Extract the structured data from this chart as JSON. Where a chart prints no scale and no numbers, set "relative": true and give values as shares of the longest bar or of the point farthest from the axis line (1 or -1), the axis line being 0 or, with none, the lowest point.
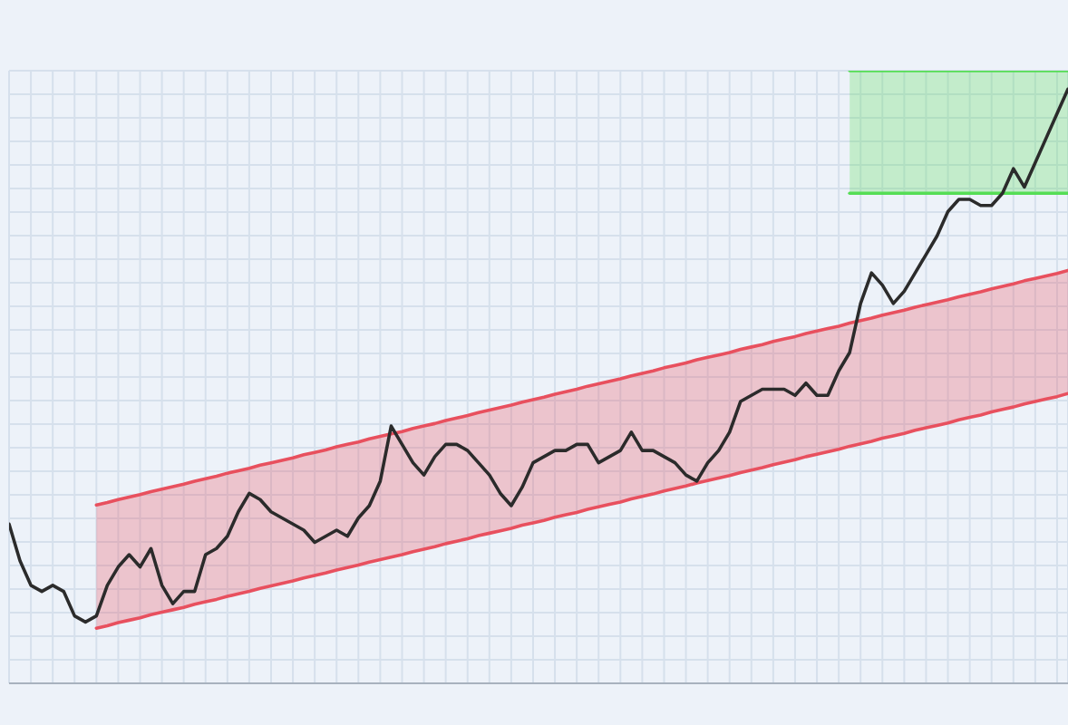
{
  "chart_data": {
    "type": "line",
    "relative": true,
    "grid": true,
    "categories": [
      null,
      null,
      null,
      null,
      null,
      null,
      null,
      null,
      null,
      null,
      null,
      null,
      null,
      null,
      null,
      null,
      null,
      null,
      null,
      null,
      null,
      null,
      null,
      null,
      null,
      null,
      null,
      null,
      null,
      null,
      null,
      null,
      null,
      null,
      null,
      null,
      null,
      null,
      null,
      null,
      null,
      null,
      null,
      null,
      null,
      null,
      null,
      null,
      null,
      null,
      null,
      null,
      null,
      null,
      null,
      null,
      null,
      null,
      null,
      null,
      null,
      null,
      null,
      null,
      null,
      null,
      null,
      null,
      null,
      null,
      null,
      null,
      null,
      null,
      null,
      null,
      null,
      null,
      null,
      null,
      null,
      null,
      null,
      null,
      null,
      null,
      null,
      null,
      null,
      null,
      null,
      null,
      null,
      null,
      null,
      null,
      null,
      null
    ],
    "series": [
      {
        "type": "line",
        "color": "#e8505e",
        "values": [
          null,
          null,
          null,
          null,
          null,
          null,
          null,
          null,
          0.291,
          0.295,
          0.3,
          0.304,
          0.308,
          0.313,
          0.317,
          0.321,
          0.325,
          0.33,
          0.334,
          0.338,
          0.343,
          0.347,
          0.351,
          0.356,
          0.36,
          0.364,
          0.368,
          0.373,
          0.377,
          0.381,
          0.386,
          0.39,
          0.394,
          0.399,
          0.403,
          0.407,
          0.411,
          0.416,
          0.42,
          0.424,
          0.429,
          0.433,
          0.437,
          0.442,
          0.446,
          0.45,
          0.454,
          0.459,
          0.463,
          0.467,
          0.472,
          0.476,
          0.48,
          0.485,
          0.489,
          0.493,
          0.497,
          0.502,
          0.506,
          0.51,
          0.515,
          0.519,
          0.523,
          0.528,
          0.532,
          0.536,
          0.54,
          0.545,
          0.549,
          0.553,
          0.558,
          0.562,
          0.566,
          0.571,
          0.575,
          0.579,
          0.583,
          0.588,
          0.592,
          0.596,
          0.601,
          0.605,
          0.609,
          0.614,
          0.618,
          0.622,
          0.626,
          0.631,
          0.635,
          0.639,
          0.644,
          0.648,
          0.652,
          0.657,
          0.661,
          0.665,
          0.669,
          0.674
        ],
        "lower": [
          null,
          null,
          null,
          null,
          null,
          null,
          null,
          null,
          0.09,
          0.094,
          0.099,
          0.103,
          0.107,
          0.112,
          0.116,
          0.12,
          0.124,
          0.129,
          0.133,
          0.137,
          0.142,
          0.146,
          0.15,
          0.155,
          0.159,
          0.163,
          0.167,
          0.172,
          0.176,
          0.18,
          0.185,
          0.189,
          0.193,
          0.198,
          0.202,
          0.206,
          0.21,
          0.215,
          0.219,
          0.223,
          0.228,
          0.232,
          0.236,
          0.241,
          0.245,
          0.249,
          0.253,
          0.258,
          0.262,
          0.266,
          0.271,
          0.275,
          0.279,
          0.284,
          0.288,
          0.292,
          0.296,
          0.301,
          0.305,
          0.309,
          0.314,
          0.318,
          0.322,
          0.327,
          0.331,
          0.335,
          0.339,
          0.344,
          0.348,
          0.352,
          0.357,
          0.361,
          0.365,
          0.37,
          0.374,
          0.378,
          0.382,
          0.387,
          0.391,
          0.395,
          0.4,
          0.404,
          0.408,
          0.413,
          0.417,
          0.421,
          0.425,
          0.43,
          0.434,
          0.438,
          0.443,
          0.447,
          0.451,
          0.456,
          0.46,
          0.464,
          0.468,
          0.473
        ],
        "upper": [
          null,
          null,
          null,
          null,
          null,
          null,
          null,
          null,
          0.291,
          0.295,
          0.3,
          0.304,
          0.308,
          0.313,
          0.317,
          0.321,
          0.325,
          0.33,
          0.334,
          0.338,
          0.343,
          0.347,
          0.351,
          0.356,
          0.36,
          0.364,
          0.368,
          0.373,
          0.377,
          0.381,
          0.386,
          0.39,
          0.394,
          0.399,
          0.403,
          0.407,
          0.411,
          0.416,
          0.42,
          0.424,
          0.429,
          0.433,
          0.437,
          0.442,
          0.446,
          0.45,
          0.454,
          0.459,
          0.463,
          0.467,
          0.472,
          0.476,
          0.48,
          0.485,
          0.489,
          0.493,
          0.497,
          0.502,
          0.506,
          0.51,
          0.515,
          0.519,
          0.523,
          0.528,
          0.532,
          0.536,
          0.54,
          0.545,
          0.549,
          0.553,
          0.558,
          0.562,
          0.566,
          0.571,
          0.575,
          0.579,
          0.583,
          0.588,
          0.592,
          0.596,
          0.601,
          0.605,
          0.609,
          0.614,
          0.618,
          0.622,
          0.626,
          0.631,
          0.635,
          0.639,
          0.644,
          0.648,
          0.652,
          0.657,
          0.661,
          0.665,
          0.669,
          0.674
        ]
      },
      {
        "type": "line",
        "color": "#e8505e",
        "values": [
          null,
          null,
          null,
          null,
          null,
          null,
          null,
          null,
          0.09,
          0.094,
          0.099,
          0.103,
          0.107,
          0.112,
          0.116,
          0.12,
          0.124,
          0.129,
          0.133,
          0.137,
          0.142,
          0.146,
          0.15,
          0.155,
          0.159,
          0.163,
          0.167,
          0.172,
          0.176,
          0.18,
          0.185,
          0.189,
          0.193,
          0.198,
          0.202,
          0.206,
          0.21,
          0.215,
          0.219,
          0.223,
          0.228,
          0.232,
          0.236,
          0.241,
          0.245,
          0.249,
          0.253,
          0.258,
          0.262,
          0.266,
          0.271,
          0.275,
          0.279,
          0.284,
          0.288,
          0.292,
          0.296,
          0.301,
          0.305,
          0.309,
          0.314,
          0.318,
          0.322,
          0.327,
          0.331,
          0.335,
          0.339,
          0.344,
          0.348,
          0.352,
          0.357,
          0.361,
          0.365,
          0.37,
          0.374,
          0.378,
          0.382,
          0.387,
          0.391,
          0.395,
          0.4,
          0.404,
          0.408,
          0.413,
          0.417,
          0.421,
          0.425,
          0.43,
          0.434,
          0.438,
          0.443,
          0.447,
          0.451,
          0.456,
          0.46,
          0.464,
          0.468,
          0.473
        ]
      },
      {
        "type": "line",
        "color": "#55dd55",
        "values": [
          null,
          null,
          null,
          null,
          null,
          null,
          null,
          null,
          null,
          null,
          null,
          null,
          null,
          null,
          null,
          null,
          null,
          null,
          null,
          null,
          null,
          null,
          null,
          null,
          null,
          null,
          null,
          null,
          null,
          null,
          null,
          null,
          null,
          null,
          null,
          null,
          null,
          null,
          null,
          null,
          null,
          null,
          null,
          null,
          null,
          null,
          null,
          null,
          null,
          null,
          null,
          null,
          null,
          null,
          null,
          null,
          null,
          null,
          null,
          null,
          null,
          null,
          null,
          null,
          null,
          null,
          null,
          null,
          null,
          null,
          null,
          null,
          null,
          null,
          null,
          null,
          null,
          1,
          1,
          1,
          1,
          1,
          1,
          1,
          1,
          1,
          1,
          1,
          1,
          1,
          1,
          1,
          1,
          1,
          1,
          1,
          1,
          1
        ],
        "lower": [
          null,
          null,
          null,
          null,
          null,
          null,
          null,
          null,
          null,
          null,
          null,
          null,
          null,
          null,
          null,
          null,
          null,
          null,
          null,
          null,
          null,
          null,
          null,
          null,
          null,
          null,
          null,
          null,
          null,
          null,
          null,
          null,
          null,
          null,
          null,
          null,
          null,
          null,
          null,
          null,
          null,
          null,
          null,
          null,
          null,
          null,
          null,
          null,
          null,
          null,
          null,
          null,
          null,
          null,
          null,
          null,
          null,
          null,
          null,
          null,
          null,
          null,
          null,
          null,
          null,
          null,
          null,
          null,
          null,
          null,
          null,
          null,
          null,
          null,
          null,
          null,
          null,
          0.8,
          0.8,
          0.8,
          0.8,
          0.8,
          0.8,
          0.8,
          0.8,
          0.8,
          0.8,
          0.8,
          0.8,
          0.8,
          0.8,
          0.8,
          0.8,
          0.8,
          0.8,
          0.8,
          0.8,
          0.8
        ],
        "upper": [
          null,
          null,
          null,
          null,
          null,
          null,
          null,
          null,
          null,
          null,
          null,
          null,
          null,
          null,
          null,
          null,
          null,
          null,
          null,
          null,
          null,
          null,
          null,
          null,
          null,
          null,
          null,
          null,
          null,
          null,
          null,
          null,
          null,
          null,
          null,
          null,
          null,
          null,
          null,
          null,
          null,
          null,
          null,
          null,
          null,
          null,
          null,
          null,
          null,
          null,
          null,
          null,
          null,
          null,
          null,
          null,
          null,
          null,
          null,
          null,
          null,
          null,
          null,
          null,
          null,
          null,
          null,
          null,
          null,
          null,
          null,
          null,
          null,
          null,
          null,
          null,
          null,
          1,
          1,
          1,
          1,
          1,
          1,
          1,
          1,
          1,
          1,
          1,
          1,
          1,
          1,
          1,
          1,
          1,
          1,
          1,
          1,
          1
        ]
      },
      {
        "type": "line",
        "color": "#55dd55",
        "values": [
          null,
          null,
          null,
          null,
          null,
          null,
          null,
          null,
          null,
          null,
          null,
          null,
          null,
          null,
          null,
          null,
          null,
          null,
          null,
          null,
          null,
          null,
          null,
          null,
          null,
          null,
          null,
          null,
          null,
          null,
          null,
          null,
          null,
          null,
          null,
          null,
          null,
          null,
          null,
          null,
          null,
          null,
          null,
          null,
          null,
          null,
          null,
          null,
          null,
          null,
          null,
          null,
          null,
          null,
          null,
          null,
          null,
          null,
          null,
          null,
          null,
          null,
          null,
          null,
          null,
          null,
          null,
          null,
          null,
          null,
          null,
          null,
          null,
          null,
          null,
          null,
          null,
          0.8,
          0.8,
          0.8,
          0.8,
          0.8,
          0.8,
          0.8,
          0.8,
          0.8,
          0.8,
          0.8,
          0.8,
          0.8,
          0.8,
          0.8,
          0.8,
          0.8,
          0.8,
          0.8,
          0.8,
          0.8
        ]
      },
      {
        "color": "#2b2b2b",
        "values": [
          0.26,
          0.2,
          0.16,
          0.15,
          0.16,
          0.15,
          0.11,
          0.1,
          0.11,
          0.16,
          0.19,
          0.21,
          0.19,
          0.22,
          0.16,
          0.13,
          0.15,
          0.15,
          0.21,
          0.22,
          0.24,
          0.28,
          0.31,
          0.3,
          0.28,
          0.27,
          0.26,
          0.25,
          0.23,
          0.24,
          0.25,
          0.24,
          0.27,
          0.29,
          0.33,
          0.42,
          0.39,
          0.36,
          0.34,
          0.37,
          0.39,
          0.39,
          0.38,
          0.36,
          0.34,
          0.31,
          0.29,
          0.32,
          0.36,
          0.37,
          0.38,
          0.38,
          0.39,
          0.39,
          0.36,
          0.37,
          0.38,
          0.41,
          0.38,
          0.38,
          0.37,
          0.36,
          0.34,
          0.33,
          0.36,
          0.38,
          0.41,
          0.46,
          0.47,
          0.48,
          0.48,
          0.48,
          0.47,
          0.49,
          0.47,
          0.47,
          0.51,
          0.54,
          0.62,
          0.67,
          0.65,
          0.62,
          0.64,
          0.67,
          0.7,
          0.73,
          0.77,
          0.79,
          0.79,
          0.78,
          0.78,
          0.8,
          0.84,
          0.81,
          0.85,
          0.89,
          0.93,
          0.97
        ]
      }
    ]
  }
}
